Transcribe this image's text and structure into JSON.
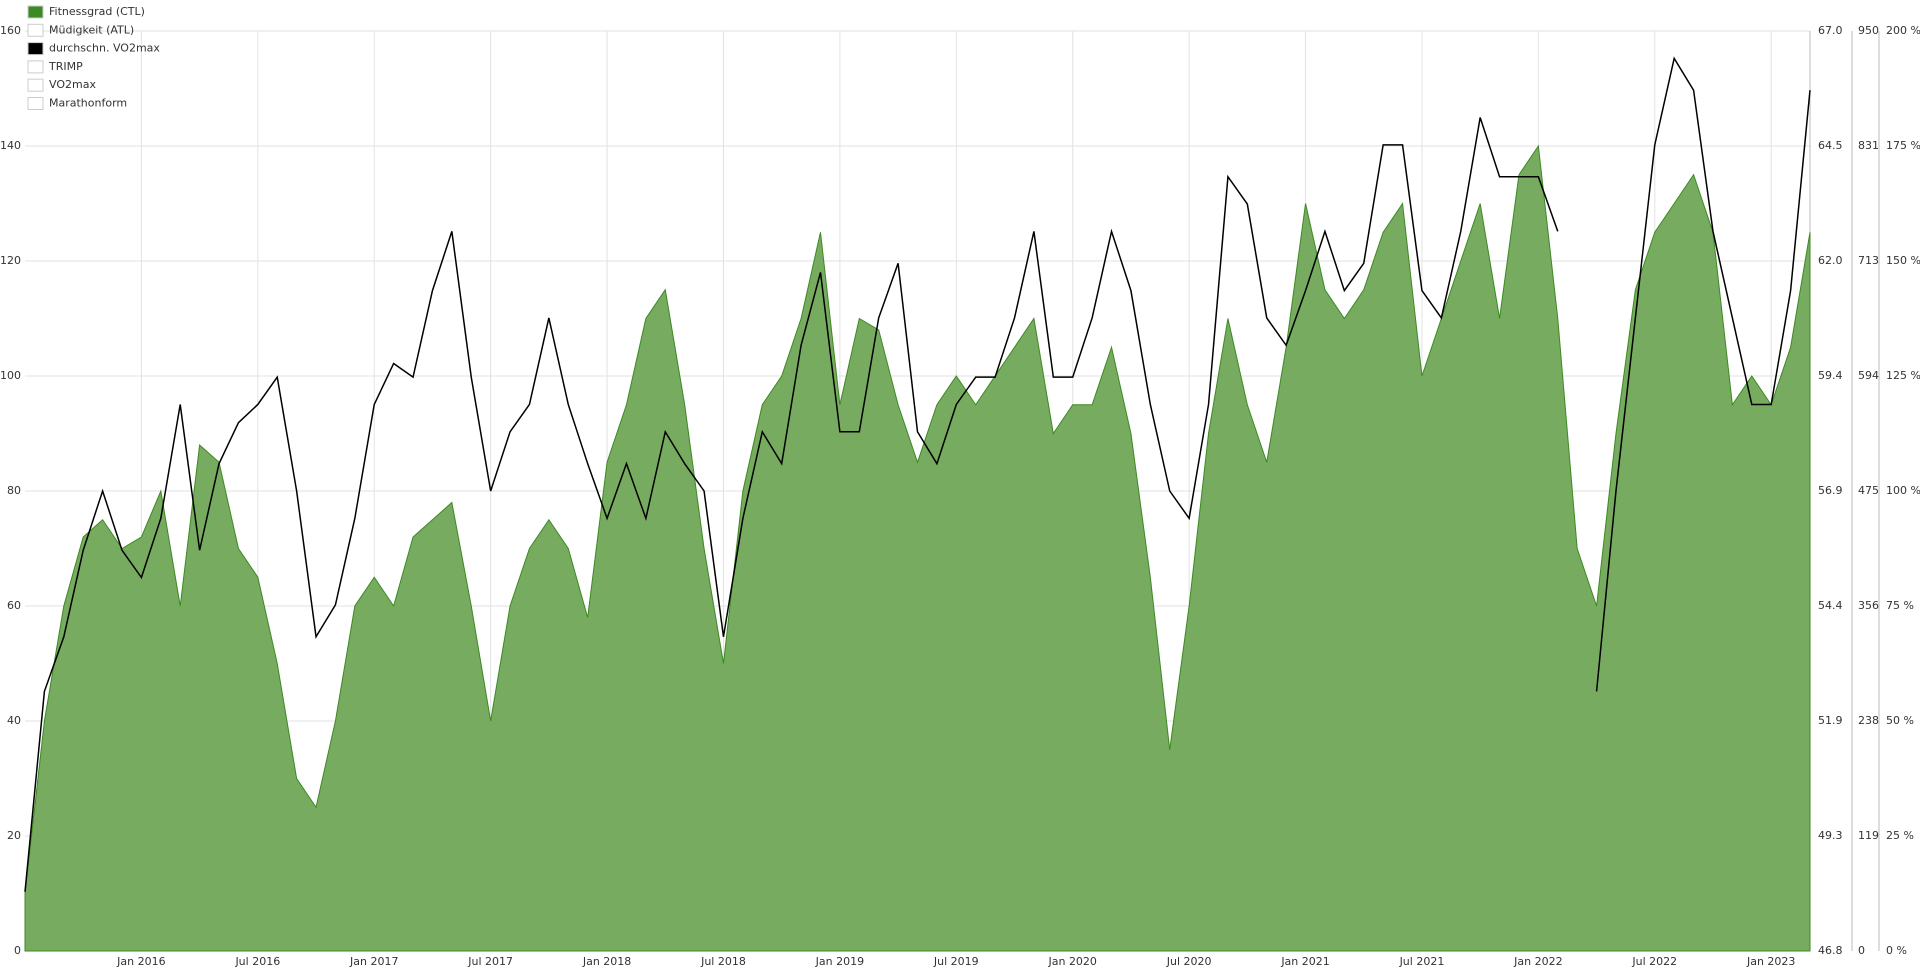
{
  "chart_data": {
    "type": "area-line",
    "x": [
      "2015-07",
      "2015-08",
      "2015-09",
      "2015-10",
      "2015-11",
      "2015-12",
      "2016-01",
      "2016-02",
      "2016-03",
      "2016-04",
      "2016-05",
      "2016-06",
      "2016-07",
      "2016-08",
      "2016-09",
      "2016-10",
      "2016-11",
      "2016-12",
      "2017-01",
      "2017-02",
      "2017-03",
      "2017-04",
      "2017-05",
      "2017-06",
      "2017-07",
      "2017-08",
      "2017-09",
      "2017-10",
      "2017-11",
      "2017-12",
      "2018-01",
      "2018-02",
      "2018-03",
      "2018-04",
      "2018-05",
      "2018-06",
      "2018-07",
      "2018-08",
      "2018-09",
      "2018-10",
      "2018-11",
      "2018-12",
      "2019-01",
      "2019-02",
      "2019-03",
      "2019-04",
      "2019-05",
      "2019-06",
      "2019-07",
      "2019-08",
      "2019-09",
      "2019-10",
      "2019-11",
      "2019-12",
      "2020-01",
      "2020-02",
      "2020-03",
      "2020-04",
      "2020-05",
      "2020-06",
      "2020-07",
      "2020-08",
      "2020-09",
      "2020-10",
      "2020-11",
      "2020-12",
      "2021-01",
      "2021-02",
      "2021-03",
      "2021-04",
      "2021-05",
      "2021-06",
      "2021-07",
      "2021-08",
      "2021-09",
      "2021-10",
      "2021-11",
      "2021-12",
      "2022-01",
      "2022-02",
      "2022-03",
      "2022-04",
      "2022-05",
      "2022-06",
      "2022-07",
      "2022-08",
      "2022-09",
      "2022-10",
      "2022-11",
      "2022-12",
      "2023-01",
      "2023-02",
      "2023-03"
    ],
    "series": [
      {
        "name": "Fitnessgrad (CTL)",
        "color": "#3c8a22",
        "fill": "#77ab60",
        "values": [
          10,
          40,
          60,
          72,
          75,
          70,
          72,
          80,
          60,
          88,
          85,
          70,
          65,
          50,
          30,
          25,
          40,
          60,
          65,
          60,
          72,
          75,
          78,
          60,
          40,
          60,
          70,
          75,
          70,
          58,
          85,
          95,
          110,
          115,
          95,
          70,
          50,
          80,
          95,
          100,
          110,
          125,
          95,
          110,
          108,
          95,
          85,
          95,
          100,
          95,
          100,
          105,
          110,
          90,
          95,
          95,
          105,
          90,
          65,
          35,
          60,
          90,
          110,
          95,
          85,
          105,
          130,
          115,
          110,
          115,
          125,
          130,
          100,
          110,
          120,
          130,
          110,
          135,
          140,
          110,
          70,
          60,
          90,
          115,
          125,
          130,
          135,
          125,
          95,
          100,
          95,
          105,
          125
        ]
      },
      {
        "name": "Müdigkeit (ATL)",
        "color": "#ffffff",
        "visible": false
      },
      {
        "name": "durchschn. VO2max",
        "color": "#000000",
        "axis": "y2",
        "values": [
          48.1,
          52.5,
          53.7,
          55.6,
          56.9,
          55.6,
          55.0,
          56.3,
          58.8,
          55.6,
          57.5,
          58.4,
          58.8,
          59.4,
          56.9,
          53.7,
          54.4,
          56.3,
          58.8,
          59.7,
          59.4,
          61.3,
          62.6,
          59.4,
          56.9,
          58.2,
          58.8,
          60.7,
          58.8,
          57.5,
          56.3,
          57.5,
          56.3,
          58.2,
          57.5,
          56.9,
          53.7,
          56.3,
          58.2,
          57.5,
          60.1,
          61.7,
          58.2,
          58.2,
          60.7,
          61.9,
          58.2,
          57.5,
          58.8,
          59.4,
          59.4,
          60.7,
          62.6,
          59.4,
          59.4,
          60.7,
          62.6,
          61.3,
          58.8,
          56.9,
          56.3,
          58.8,
          63.8,
          63.2,
          60.7,
          60.1,
          61.3,
          62.6,
          61.3,
          61.9,
          64.5,
          64.5,
          61.3,
          60.7,
          62.6,
          65.1,
          63.8,
          63.8,
          63.8,
          62.6,
          null,
          52.5,
          56.9,
          60.7,
          64.5,
          66.4,
          65.7,
          62.6,
          60.7,
          58.8,
          58.8,
          61.3,
          65.7
        ]
      },
      {
        "name": "TRIMP",
        "color": "#ffffff",
        "visible": false
      },
      {
        "name": "VO2max",
        "color": "#ffffff",
        "visible": false
      },
      {
        "name": "Marathonform",
        "color": "#ffffff",
        "visible": false
      }
    ],
    "xlim": [
      "2015-07",
      "2023-03"
    ],
    "xticks": [
      {
        "value": "2016-01",
        "label": "Jan 2016"
      },
      {
        "value": "2016-07",
        "label": "Jul 2016"
      },
      {
        "value": "2017-01",
        "label": "Jan 2017"
      },
      {
        "value": "2017-07",
        "label": "Jul 2017"
      },
      {
        "value": "2018-01",
        "label": "Jan 2018"
      },
      {
        "value": "2018-07",
        "label": "Jul 2018"
      },
      {
        "value": "2019-01",
        "label": "Jan 2019"
      },
      {
        "value": "2019-07",
        "label": "Jul 2019"
      },
      {
        "value": "2020-01",
        "label": "Jan 2020"
      },
      {
        "value": "2020-07",
        "label": "Jul 2020"
      },
      {
        "value": "2021-01",
        "label": "Jan 2021"
      },
      {
        "value": "2021-07",
        "label": "Jul 2021"
      },
      {
        "value": "2022-01",
        "label": "Jan 2022"
      },
      {
        "value": "2022-07",
        "label": "Jul 2022"
      },
      {
        "value": "2023-01",
        "label": "Jan 2023"
      }
    ],
    "ylim": [
      0,
      160
    ],
    "yticks": [
      0,
      20,
      40,
      60,
      80,
      100,
      120,
      140,
      160
    ],
    "y2lim": [
      46.8,
      67.0
    ],
    "y2ticks": [
      46.8,
      {
        "value": 49.325,
        "label": "49.3"
      },
      {
        "value": 51.85,
        "label": "51.9"
      },
      {
        "value": 54.375,
        "label": "54.4"
      },
      56.9,
      {
        "value": 59.425,
        "label": "59.4"
      },
      {
        "value": 61.95,
        "label": "62.0"
      },
      {
        "value": 64.475,
        "label": "64.5"
      },
      {
        "value": 67.0,
        "label": "67.0"
      }
    ],
    "y3lim": [
      0,
      950
    ],
    "y3ticks": [
      0,
      {
        "value": 118.75,
        "label": "119"
      },
      {
        "value": 237.5,
        "label": "238"
      },
      {
        "value": 356.25,
        "label": "356"
      },
      475,
      {
        "value": 593.75,
        "label": "594"
      },
      {
        "value": 712.5,
        "label": "713"
      },
      {
        "value": 831.25,
        "label": "831"
      },
      950
    ],
    "y4lim": [
      0,
      200
    ],
    "y4ticks": [
      {
        "value": 0,
        "label": "0 %"
      },
      {
        "value": 25,
        "label": "25 %"
      },
      {
        "value": 50,
        "label": "50 %"
      },
      {
        "value": 75,
        "label": "75 %"
      },
      {
        "value": 100,
        "label": "100 %"
      },
      {
        "value": 125,
        "label": "125 %"
      },
      {
        "value": 150,
        "label": "150 %"
      },
      {
        "value": 175,
        "label": "175 %"
      },
      {
        "value": 200,
        "label": "200 %"
      }
    ],
    "grid": true,
    "legend": "top-left"
  }
}
